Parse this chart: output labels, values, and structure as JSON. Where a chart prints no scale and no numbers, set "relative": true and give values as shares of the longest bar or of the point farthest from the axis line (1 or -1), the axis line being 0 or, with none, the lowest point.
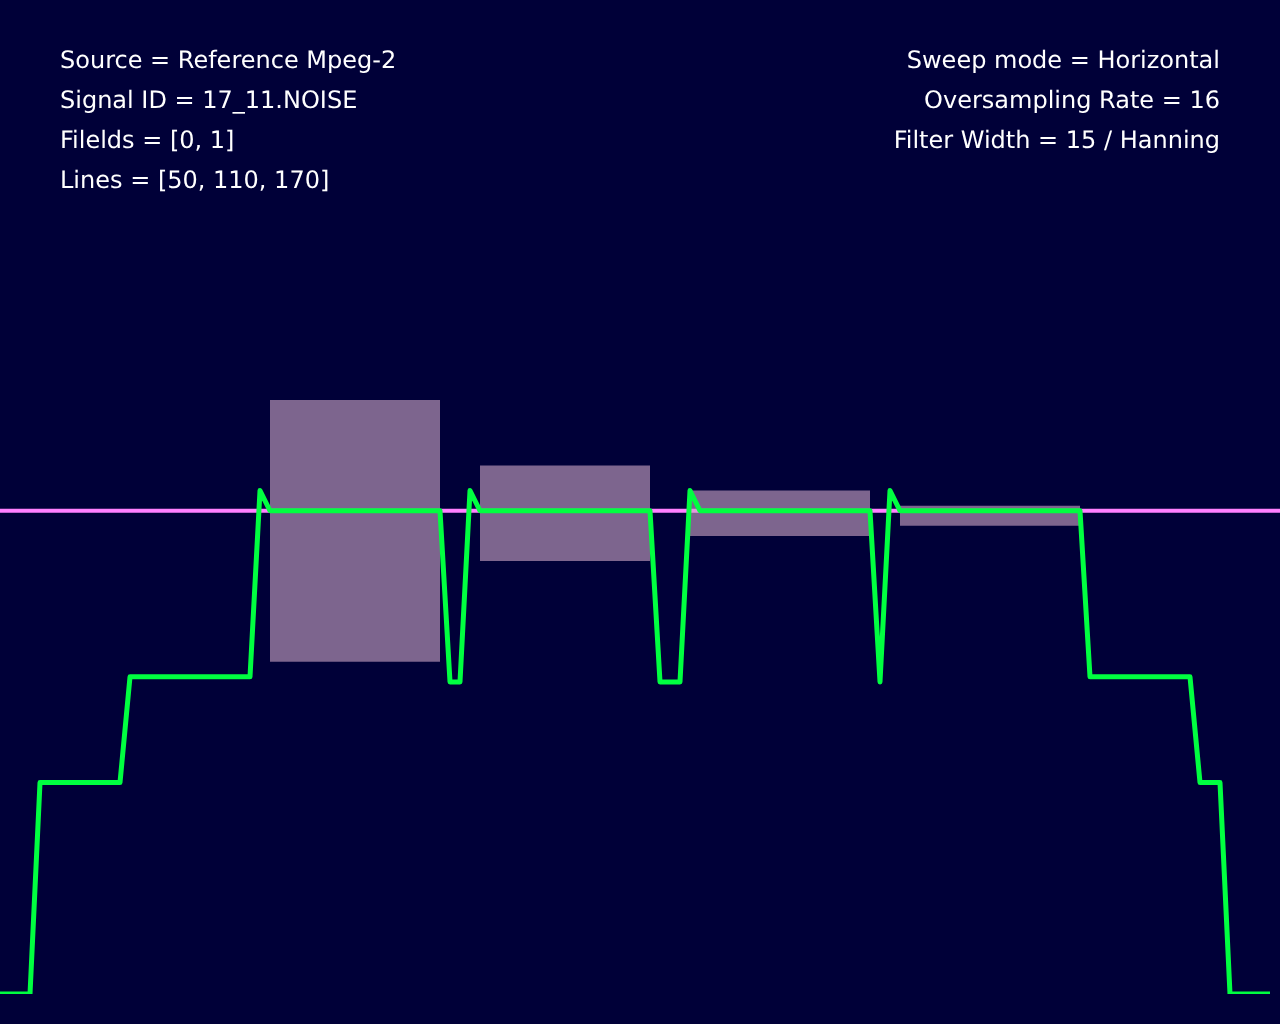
{
  "chart_data": {
    "type": "line",
    "relative": true,
    "legend": false,
    "marker": "none",
    "line_style": "solid",
    "annotations": [
      "Source = Reference Mpeg-2",
      "Sweep mode = Horizontal",
      "Signal ID = 17_11.NOISE",
      "Oversampling Rate = 16",
      "Filelds = [0, 1]",
      "Filter Width = 15 / Hanning",
      "Lines = [50, 110, 170]"
    ],
    "categories": [
      null,
      null,
      null,
      null,
      null,
      null,
      null,
      null,
      null,
      null,
      null,
      null,
      null,
      null,
      null,
      null,
      null,
      null,
      null,
      null,
      null,
      null,
      null,
      null,
      null,
      null,
      null,
      null,
      null,
      null,
      null,
      null,
      null,
      null,
      null,
      null,
      null,
      null,
      null,
      null,
      null,
      null,
      null,
      null,
      null,
      null,
      null,
      null,
      null,
      null,
      null,
      null,
      null,
      null,
      null,
      null,
      null,
      null,
      null,
      null,
      null,
      null,
      null,
      null,
      null,
      null,
      null,
      null,
      null,
      null,
      null,
      null,
      null,
      null,
      null,
      null,
      null,
      null,
      null,
      null,
      null,
      null,
      null,
      null,
      null,
      null,
      null,
      null,
      null,
      null,
      null,
      null,
      null,
      null,
      null,
      null,
      null,
      null,
      null,
      null,
      null,
      null,
      null,
      null,
      null,
      null,
      null,
      null,
      null,
      null,
      null,
      null,
      null,
      null,
      null,
      null,
      null,
      null,
      null,
      null,
      null,
      null,
      null,
      null,
      null,
      null,
      null,
      null
    ],
    "ref_lines": [
      {
        "axis": "y",
        "value": 0.96,
        "color": "#ff80ff"
      }
    ],
    "series": [
      {
        "color": "#00ff40",
        "values": [
          0,
          0,
          0,
          0,
          0.42,
          0.42,
          0.42,
          0.42,
          0.42,
          0.42,
          0.42,
          0.42,
          0.42,
          0.63,
          0.63,
          0.63,
          0.63,
          0.63,
          0.63,
          0.63,
          0.63,
          0.63,
          0.63,
          0.63,
          0.63,
          0.63,
          1,
          0.96,
          0.96,
          0.96,
          0.96,
          0.96,
          0.96,
          0.96,
          0.96,
          0.96,
          0.96,
          0.96,
          0.96,
          0.96,
          0.96,
          0.96,
          0.96,
          0.96,
          0.96,
          0.62,
          0.62,
          1,
          0.96,
          0.96,
          0.96,
          0.96,
          0.96,
          0.96,
          0.96,
          0.96,
          0.96,
          0.96,
          0.96,
          0.96,
          0.96,
          0.96,
          0.96,
          0.96,
          0.96,
          0.96,
          0.62,
          0.62,
          0.62,
          1,
          0.96,
          0.96,
          0.96,
          0.96,
          0.96,
          0.96,
          0.96,
          0.96,
          0.96,
          0.96,
          0.96,
          0.96,
          0.96,
          0.96,
          0.96,
          0.96,
          0.96,
          0.96,
          0.62,
          1,
          0.96,
          0.96,
          0.96,
          0.96,
          0.96,
          0.96,
          0.96,
          0.96,
          0.96,
          0.96,
          0.96,
          0.96,
          0.96,
          0.96,
          0.96,
          0.96,
          0.96,
          0.96,
          0.96,
          0.63,
          0.63,
          0.63,
          0.63,
          0.63,
          0.63,
          0.63,
          0.63,
          0.63,
          0.63,
          0.63,
          0.42,
          0.42,
          0.42,
          0,
          0,
          0,
          0,
          0
        ],
        "lower": [
          null,
          null,
          null,
          null,
          null,
          null,
          null,
          null,
          null,
          null,
          null,
          null,
          null,
          null,
          null,
          null,
          null,
          null,
          null,
          null,
          null,
          null,
          null,
          null,
          null,
          null,
          null,
          0.66,
          0.66,
          0.66,
          0.66,
          0.66,
          0.66,
          0.66,
          0.66,
          0.66,
          0.66,
          0.66,
          0.66,
          0.66,
          0.66,
          0.66,
          0.66,
          0.66,
          0.66,
          null,
          null,
          null,
          0.86,
          0.86,
          0.86,
          0.86,
          0.86,
          0.86,
          0.86,
          0.86,
          0.86,
          0.86,
          0.86,
          0.86,
          0.86,
          0.86,
          0.86,
          0.86,
          0.86,
          0.86,
          null,
          null,
          null,
          0.91,
          0.91,
          0.91,
          0.91,
          0.91,
          0.91,
          0.91,
          0.91,
          0.91,
          0.91,
          0.91,
          0.91,
          0.91,
          0.91,
          0.91,
          0.91,
          0.91,
          0.91,
          0.91,
          null,
          null,
          0.93,
          0.93,
          0.93,
          0.93,
          0.93,
          0.93,
          0.93,
          0.93,
          0.93,
          0.93,
          0.93,
          0.93,
          0.93,
          0.93,
          0.93,
          0.93,
          0.93,
          0.93,
          0.93,
          null,
          null,
          null,
          null,
          null,
          null,
          null,
          null,
          null,
          null,
          null,
          null,
          null,
          null,
          null,
          null,
          null,
          null,
          null
        ],
        "upper": [
          null,
          null,
          null,
          null,
          null,
          null,
          null,
          null,
          null,
          null,
          null,
          null,
          null,
          null,
          null,
          null,
          null,
          null,
          null,
          null,
          null,
          null,
          null,
          null,
          null,
          null,
          null,
          1.18,
          1.18,
          1.18,
          1.18,
          1.18,
          1.18,
          1.18,
          1.18,
          1.18,
          1.18,
          1.18,
          1.18,
          1.18,
          1.18,
          1.18,
          1.18,
          1.18,
          1.18,
          null,
          null,
          null,
          1.05,
          1.05,
          1.05,
          1.05,
          1.05,
          1.05,
          1.05,
          1.05,
          1.05,
          1.05,
          1.05,
          1.05,
          1.05,
          1.05,
          1.05,
          1.05,
          1.05,
          1.05,
          null,
          null,
          null,
          1,
          1,
          1,
          1,
          1,
          1,
          1,
          1,
          1,
          1,
          1,
          1,
          1,
          1,
          1,
          1,
          1,
          1,
          1,
          null,
          null,
          0.97,
          0.97,
          0.97,
          0.97,
          0.97,
          0.97,
          0.97,
          0.97,
          0.97,
          0.97,
          0.97,
          0.97,
          0.97,
          0.97,
          0.97,
          0.97,
          0.97,
          0.97,
          0.97,
          null,
          null,
          null,
          null,
          null,
          null,
          null,
          null,
          null,
          null,
          null,
          null,
          null,
          null,
          null,
          null,
          null,
          null,
          null
        ]
      }
    ]
  }
}
